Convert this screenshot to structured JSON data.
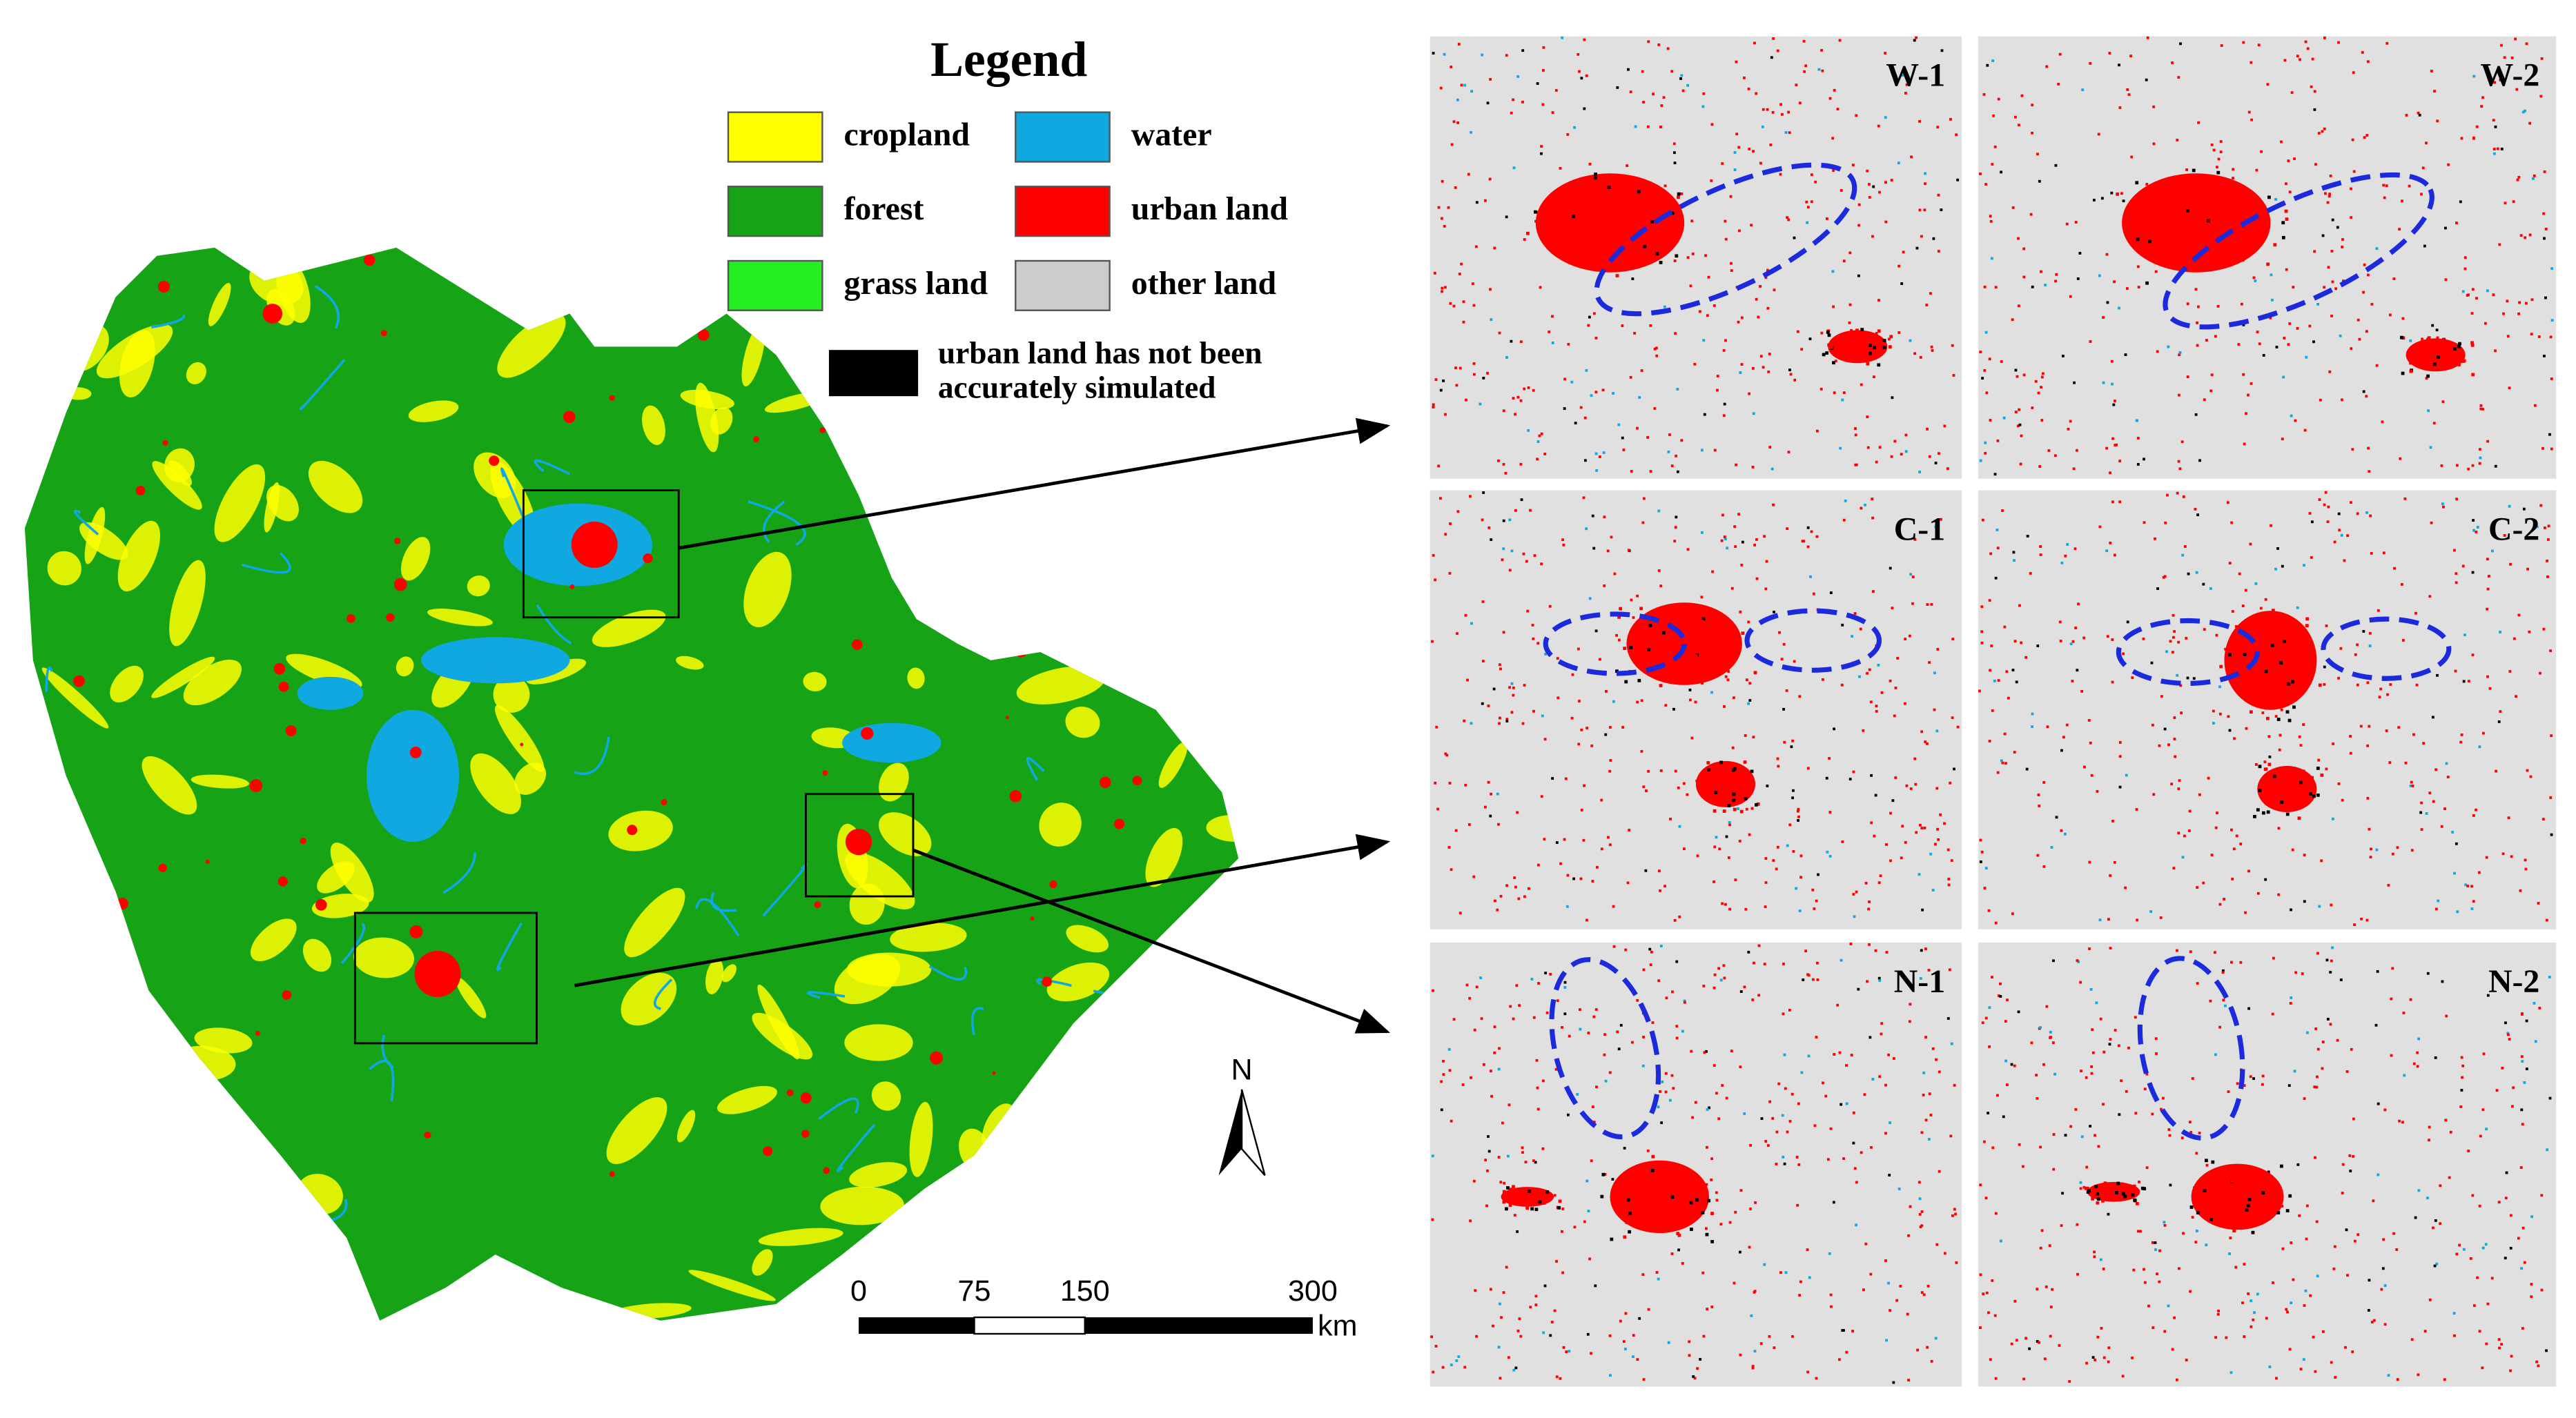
{
  "legend": {
    "title": "Legend",
    "items": [
      {
        "label": "cropland",
        "color": "#ffff00"
      },
      {
        "label": "forest",
        "color": "#16a316"
      },
      {
        "label": "grass land",
        "color": "#22ee22"
      },
      {
        "label": "water",
        "color": "#10a8e0"
      },
      {
        "label": "urban land",
        "color": "#ff0000"
      },
      {
        "label": "other land",
        "color": "#cccccc"
      }
    ],
    "note": {
      "lines": [
        "urban land has not been",
        "accurately simulated"
      ],
      "color": "#000000"
    }
  },
  "panels": [
    {
      "label": "W-1"
    },
    {
      "label": "W-2"
    },
    {
      "label": "C-1"
    },
    {
      "label": "C-2"
    },
    {
      "label": "N-1"
    },
    {
      "label": "N-2"
    }
  ],
  "north_arrow": {
    "label": "N"
  },
  "scale_bar": {
    "labels": [
      "0",
      "75",
      "150",
      "300"
    ],
    "unit": "km"
  }
}
